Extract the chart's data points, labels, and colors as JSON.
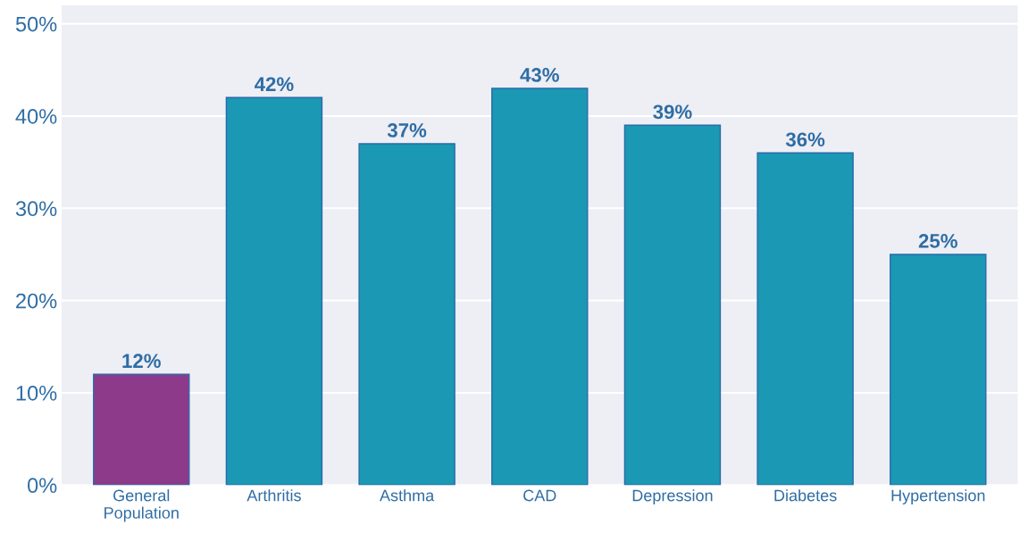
{
  "chart_data": {
    "type": "bar",
    "categories": [
      "General\nPopulation",
      "Arthritis",
      "Asthma",
      "CAD",
      "Depression",
      "Diabetes",
      "Hypertension"
    ],
    "values": [
      12,
      42,
      37,
      43,
      39,
      36,
      25
    ],
    "colors": [
      "#8e3a8a",
      "#1a98b4",
      "#1a98b4",
      "#1a98b4",
      "#1a98b4",
      "#1a98b4",
      "#1a98b4"
    ],
    "value_labels": [
      "12%",
      "42%",
      "37%",
      "43%",
      "39%",
      "36%",
      "25%"
    ],
    "ylim": [
      0,
      52
    ],
    "yticks": [
      {
        "value": 0,
        "label": "0%"
      },
      {
        "value": 10,
        "label": "10%"
      },
      {
        "value": 20,
        "label": "20%"
      },
      {
        "value": 30,
        "label": "30%"
      },
      {
        "value": 40,
        "label": "40%"
      },
      {
        "value": 50,
        "label": "50%"
      }
    ],
    "grid": "y"
  }
}
